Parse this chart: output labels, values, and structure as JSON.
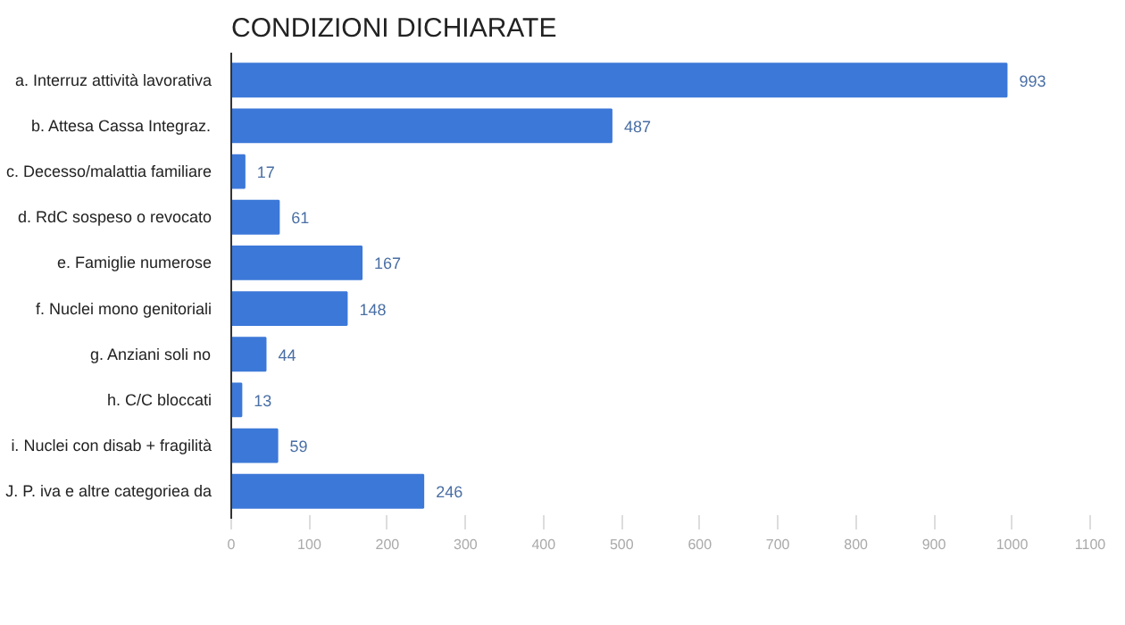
{
  "chart_data": {
    "type": "bar",
    "orientation": "horizontal",
    "title": "CONDIZIONI DICHIARATE",
    "categories": [
      "a. Interruz attività lavorativa",
      "b. Attesa Cassa Integraz.",
      "c. Decesso/malattia familiare",
      "d. RdC sospeso o revocato",
      "e. Famiglie numerose",
      "f. Nuclei mono genitoriali",
      "g. Anziani soli no",
      "h. C/C bloccati",
      "i. Nuclei con disab + fragilità",
      "J. P. iva e altre categoriea da"
    ],
    "values": [
      993,
      487,
      17,
      61,
      167,
      148,
      44,
      13,
      59,
      246
    ],
    "color": "#3c78d8",
    "data_labels": true,
    "grid": false,
    "xlim": [
      0,
      1100
    ],
    "xticks": [
      0,
      100,
      200,
      300,
      400,
      500,
      600,
      700,
      800,
      900,
      1000,
      1100
    ]
  }
}
